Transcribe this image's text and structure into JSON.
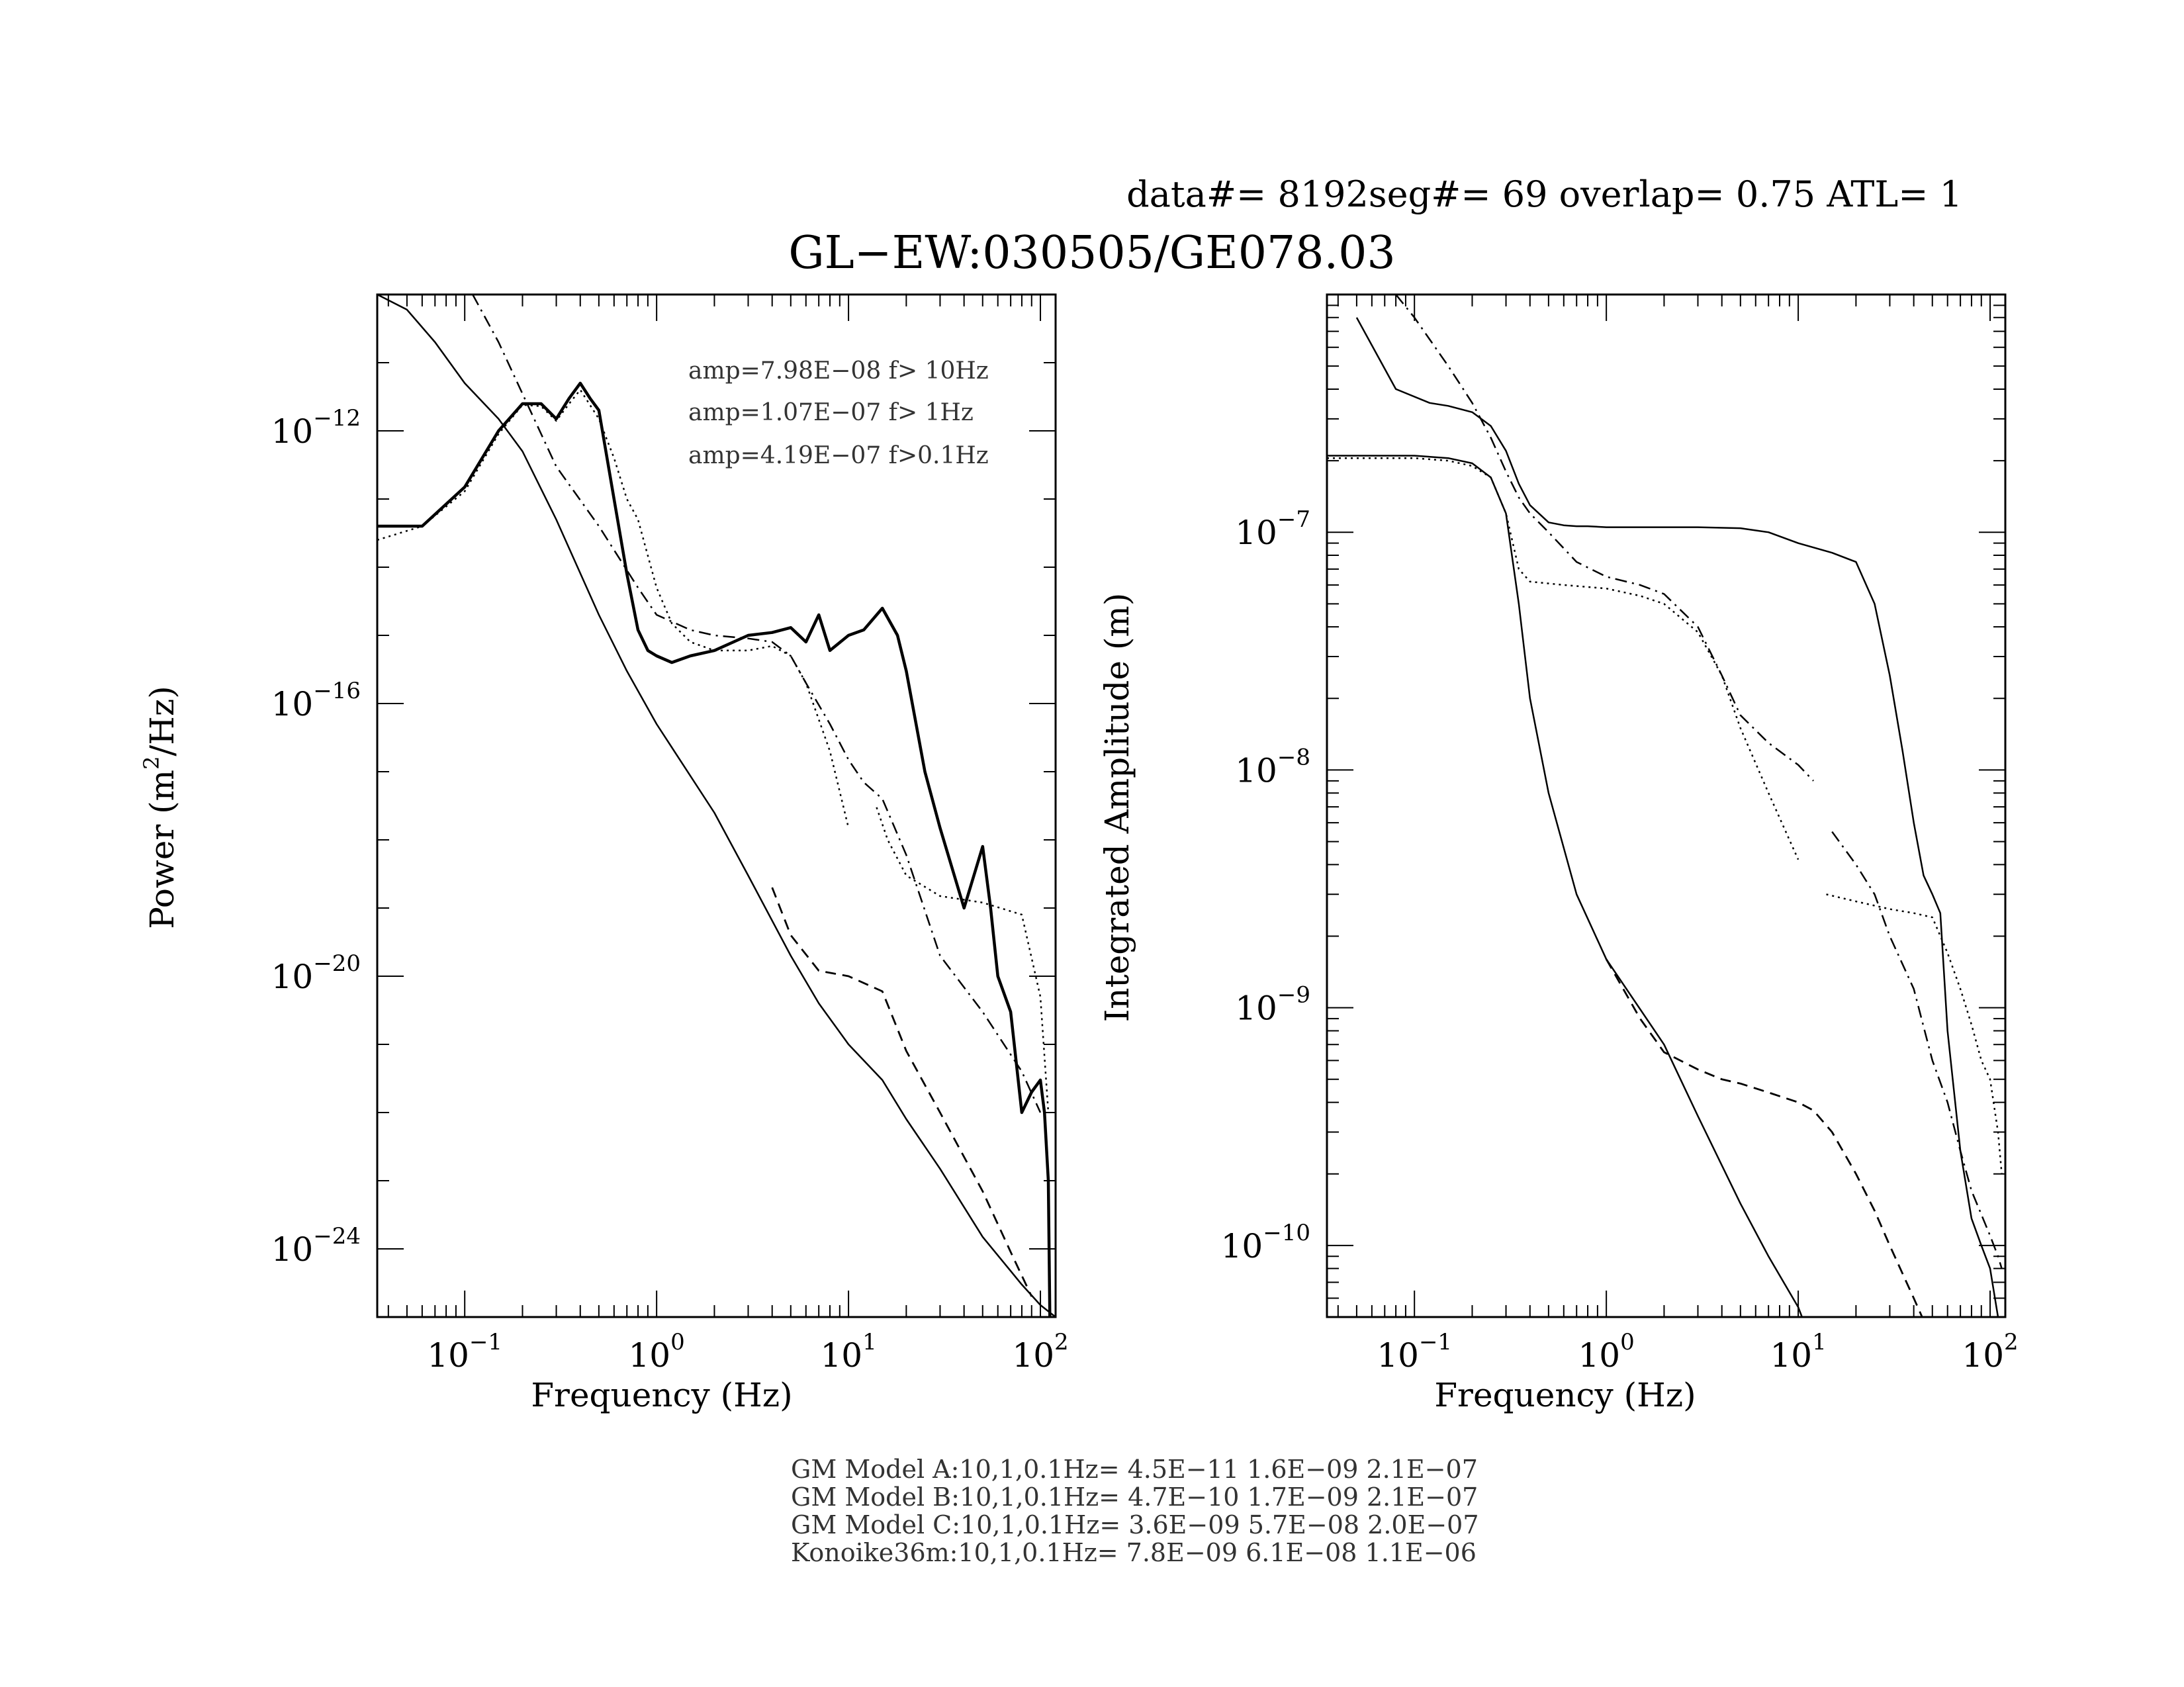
{
  "header": {
    "run_info": "data#= 8192seg#= 69 overlap=  0.75 ATL= 1",
    "title": "GL−EW:030505/GE078.03"
  },
  "footer_lines": [
    "GM Model A:10,1,0.1Hz= 4.5E−11 1.6E−09 2.1E−07",
    "GM Model B:10,1,0.1Hz= 4.7E−10 1.7E−09 2.1E−07",
    "GM Model C:10,1,0.1Hz= 3.6E−09 5.7E−08 2.0E−07",
    "Konoike36m:10,1,0.1Hz= 7.8E−09 6.1E−08 1.1E−06"
  ],
  "chart_data": [
    {
      "type": "line",
      "xlabel": "Frequency (Hz)",
      "ylabel_main": "Power (m",
      "ylabel_sup": "2",
      "ylabel_tail": "/Hz)",
      "xscale": "log",
      "yscale": "log",
      "xlim": [
        0.035,
        120
      ],
      "ylim": [
        1e-25,
        1e-10
      ],
      "x_ticks": [
        {
          "value": 0.1,
          "base": "10",
          "exp": "−1"
        },
        {
          "value": 1,
          "base": "10",
          "exp": "0"
        },
        {
          "value": 10,
          "base": "10",
          "exp": "1"
        },
        {
          "value": 100,
          "base": "10",
          "exp": "2"
        }
      ],
      "y_ticks": [
        {
          "value": 1e-12,
          "base": "10",
          "exp": "−12"
        },
        {
          "value": 1e-16,
          "base": "10",
          "exp": "−16"
        },
        {
          "value": 1e-20,
          "base": "10",
          "exp": "−20"
        },
        {
          "value": 1e-24,
          "base": "10",
          "exp": "−24"
        }
      ],
      "annotations": [
        "amp=7.98E−08 f> 10Hz",
        "amp=1.07E−07 f>  1Hz",
        "amp=4.19E−07 f>0.1Hz"
      ],
      "series": [
        {
          "style": "solid-bold",
          "x": [
            0.035,
            0.06,
            0.1,
            0.15,
            0.2,
            0.25,
            0.3,
            0.35,
            0.4,
            0.45,
            0.5,
            0.6,
            0.7,
            0.8,
            0.9,
            1.0,
            1.2,
            1.5,
            2,
            3,
            4,
            5,
            6,
            7,
            8,
            10,
            12,
            15,
            18,
            20,
            25,
            30,
            40,
            50,
            55,
            60,
            70,
            80,
            90,
            100,
            105,
            110,
            112
          ],
          "y": [
            4e-14,
            4e-14,
            1.5e-13,
            1e-12,
            2.5e-12,
            2.5e-12,
            1.5e-12,
            3e-12,
            5e-12,
            3e-12,
            2e-12,
            1e-13,
            8e-15,
            1.2e-15,
            6e-16,
            5e-16,
            4e-16,
            5e-16,
            6e-16,
            1e-15,
            1.1e-15,
            1.3e-15,
            8e-16,
            2e-15,
            6e-16,
            1e-15,
            1.2e-15,
            2.5e-15,
            1e-15,
            3e-16,
            1e-17,
            1.5e-18,
            1e-19,
            8e-19,
            1e-19,
            1e-20,
            3e-21,
            1e-22,
            2e-22,
            3e-22,
            1e-22,
            1e-23,
            1e-25
          ]
        },
        {
          "style": "dotted",
          "x": [
            0.035,
            0.06,
            0.1,
            0.15,
            0.2,
            0.25,
            0.3,
            0.35,
            0.4,
            0.5,
            0.6,
            0.7,
            0.8,
            1.0,
            1.2,
            1.5,
            2,
            3,
            4,
            5,
            6,
            8,
            10
          ],
          "y": [
            2.5e-14,
            4e-14,
            1.3e-13,
            9e-13,
            2.4e-12,
            2.3e-12,
            1.4e-12,
            2.5e-12,
            4e-12,
            1.5e-12,
            4e-13,
            1e-13,
            5e-14,
            5e-15,
            1.5e-15,
            8e-16,
            6e-16,
            6e-16,
            7e-16,
            5e-16,
            2e-16,
            2e-17,
            1.5e-18
          ]
        },
        {
          "style": "dotted",
          "x": [
            14,
            16,
            20,
            30,
            50,
            80,
            100,
            110
          ],
          "y": [
            3e-18,
            1e-18,
            3e-19,
            1.5e-19,
            1.2e-19,
            8e-20,
            5e-21,
            1e-22
          ]
        },
        {
          "style": "dashdot",
          "x": [
            0.11,
            0.15,
            0.2,
            0.3,
            0.5,
            0.8,
            1.0,
            1.5,
            2,
            3,
            4,
            5,
            6,
            8,
            10,
            12,
            15,
            20,
            30,
            50,
            80,
            100
          ],
          "y": [
            1e-10,
            2e-11,
            3.5e-12,
            3e-13,
            4e-14,
            5e-15,
            2e-15,
            1.2e-15,
            1e-15,
            9e-16,
            8e-16,
            5e-16,
            2e-16,
            5e-17,
            1.5e-17,
            7e-18,
            4e-18,
            6e-19,
            2e-20,
            3e-21,
            4e-22,
            1e-22
          ]
        },
        {
          "style": "solid",
          "x": [
            0.035,
            0.05,
            0.07,
            0.1,
            0.15,
            0.2,
            0.3,
            0.5,
            0.7,
            1,
            2,
            3,
            5,
            7,
            10,
            15,
            20,
            30,
            50,
            80,
            100,
            120
          ],
          "y": [
            1e-10,
            6e-11,
            2e-11,
            5e-12,
            1.5e-12,
            5e-13,
            5e-14,
            2e-15,
            3e-16,
            5e-17,
            2.5e-18,
            3e-19,
            2e-20,
            4e-21,
            1e-21,
            3e-22,
            8e-23,
            1.5e-23,
            1.5e-24,
            3e-25,
            1.5e-25,
            1e-25
          ]
        },
        {
          "style": "dashed",
          "x": [
            4,
            5,
            7,
            10,
            15,
            20,
            30,
            50,
            70,
            90
          ],
          "y": [
            2e-19,
            4e-20,
            1.2e-20,
            1e-20,
            6e-21,
            8e-22,
            1e-22,
            7e-24,
            9e-25,
            2e-25
          ]
        }
      ]
    },
    {
      "type": "line",
      "xlabel": "Frequency (Hz)",
      "ylabel": "Integrated Amplitude (m)",
      "xscale": "log",
      "yscale": "log",
      "xlim": [
        0.035,
        120
      ],
      "ylim": [
        5e-11,
        1e-06
      ],
      "x_ticks": [
        {
          "value": 0.1,
          "base": "10",
          "exp": "−1"
        },
        {
          "value": 1,
          "base": "10",
          "exp": "0"
        },
        {
          "value": 10,
          "base": "10",
          "exp": "1"
        },
        {
          "value": 100,
          "base": "10",
          "exp": "2"
        }
      ],
      "y_ticks": [
        {
          "value": 1e-07,
          "base": "10",
          "exp": "−7"
        },
        {
          "value": 1e-08,
          "base": "10",
          "exp": "−8"
        },
        {
          "value": 1e-09,
          "base": "10",
          "exp": "−9"
        },
        {
          "value": 1e-10,
          "base": "10",
          "exp": "−10"
        }
      ],
      "series": [
        {
          "style": "solid",
          "x": [
            0.05,
            0.08,
            0.12,
            0.15,
            0.2,
            0.25,
            0.3,
            0.35,
            0.4,
            0.5,
            0.6,
            0.7,
            0.8,
            1,
            1.5,
            2,
            3,
            5,
            7,
            10,
            15,
            20,
            25,
            30,
            35,
            40,
            45,
            50,
            55,
            60,
            70,
            80,
            90,
            100,
            110
          ],
          "y": [
            8e-07,
            4e-07,
            3.5e-07,
            3.4e-07,
            3.2e-07,
            2.8e-07,
            2.2e-07,
            1.6e-07,
            1.3e-07,
            1.1e-07,
            1.07e-07,
            1.06e-07,
            1.06e-07,
            1.05e-07,
            1.05e-07,
            1.05e-07,
            1.05e-07,
            1.04e-07,
            1e-07,
            9e-08,
            8.2e-08,
            7.5e-08,
            5e-08,
            2.5e-08,
            1.2e-08,
            6e-09,
            3.6e-09,
            3e-09,
            2.5e-09,
            8e-10,
            2.5e-10,
            1.3e-10,
            1e-10,
            8e-11,
            5e-11
          ]
        },
        {
          "style": "solid",
          "x": [
            0.035,
            0.1,
            0.15,
            0.2,
            0.25,
            0.3,
            0.35,
            0.4,
            0.5,
            0.7,
            1,
            2,
            3,
            5,
            7,
            10,
            11
          ],
          "y": [
            2.1e-07,
            2.1e-07,
            2.05e-07,
            1.95e-07,
            1.7e-07,
            1.2e-07,
            5e-08,
            2e-08,
            8e-09,
            3e-09,
            1.6e-09,
            7e-10,
            3.5e-10,
            1.5e-10,
            9e-11,
            5.5e-11,
            4.5e-11
          ]
        },
        {
          "style": "dotted",
          "x": [
            0.035,
            0.1,
            0.15,
            0.2,
            0.25,
            0.3,
            0.35,
            0.4,
            0.6,
            1,
            1.5,
            2,
            3,
            4,
            5,
            7,
            10
          ],
          "y": [
            2.05e-07,
            2.05e-07,
            2e-07,
            1.9e-07,
            1.7e-07,
            1.2e-07,
            7e-08,
            6.2e-08,
            6e-08,
            5.8e-08,
            5.4e-08,
            5e-08,
            3.8e-08,
            2.5e-08,
            1.5e-08,
            8e-09,
            4.2e-09
          ]
        },
        {
          "style": "dotted",
          "x": [
            14,
            20,
            30,
            40,
            50,
            60,
            70,
            80,
            90,
            100,
            110,
            115
          ],
          "y": [
            3e-09,
            2.8e-09,
            2.6e-09,
            2.5e-09,
            2.4e-09,
            1.7e-09,
            1.2e-09,
            8.5e-10,
            6e-10,
            5e-10,
            3e-10,
            2e-10
          ]
        },
        {
          "style": "dashdot",
          "x": [
            0.08,
            0.1,
            0.15,
            0.2,
            0.25,
            0.3,
            0.35,
            0.4,
            0.5,
            0.7,
            1,
            1.5,
            2,
            3,
            4,
            5,
            7,
            10,
            12
          ],
          "y": [
            1e-06,
            8e-07,
            5e-07,
            3.5e-07,
            2.5e-07,
            1.8e-07,
            1.4e-07,
            1.2e-07,
            1e-07,
            7.5e-08,
            6.5e-08,
            6e-08,
            5.5e-08,
            4e-08,
            2.5e-08,
            1.7e-08,
            1.3e-08,
            1.05e-08,
            9e-09
          ]
        },
        {
          "style": "dashdot",
          "x": [
            15,
            20,
            25,
            30,
            40,
            50,
            60,
            70,
            80,
            100,
            110,
            115
          ],
          "y": [
            5.5e-09,
            4e-09,
            3e-09,
            2e-09,
            1.2e-09,
            6e-10,
            4e-10,
            2.5e-10,
            1.7e-10,
            1.1e-10,
            9e-11,
            8e-11
          ]
        },
        {
          "style": "dashed",
          "x": [
            1,
            1.5,
            2,
            3,
            4,
            5,
            7,
            10,
            12,
            15,
            20,
            25,
            30,
            40,
            50,
            55
          ],
          "y": [
            1.6e-09,
            9e-10,
            6.5e-10,
            5.5e-10,
            5e-10,
            4.8e-10,
            4.4e-10,
            4e-10,
            3.7e-10,
            3e-10,
            2e-10,
            1.4e-10,
            1e-10,
            6e-11,
            4e-11,
            3.5e-11
          ]
        }
      ]
    }
  ]
}
